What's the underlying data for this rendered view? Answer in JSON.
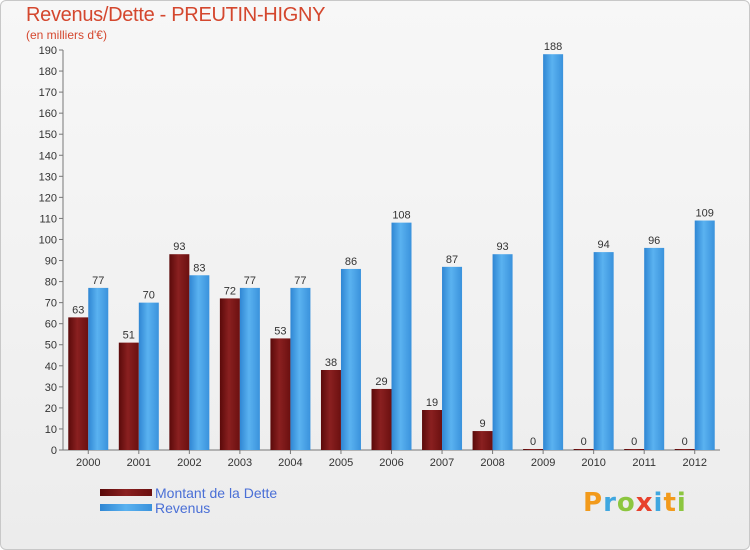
{
  "title": "Revenus/Dette - PREUTIN-HIGNY",
  "subtitle": "(en milliers d'€)",
  "colors": {
    "debt": "#7a1515",
    "revenue": "#3d9be3",
    "title": "#d4472e",
    "legend_text": "#4a6fd6"
  },
  "legend": [
    {
      "label": "Montant de la Dette",
      "series": "debt"
    },
    {
      "label": "Revenus",
      "series": "revenue"
    }
  ],
  "logo": {
    "text": "Proxiti"
  },
  "chart_data": {
    "type": "bar",
    "title": "Revenus/Dette - PREUTIN-HIGNY",
    "subtitle": "(en milliers d'€)",
    "categories": [
      "2000",
      "2001",
      "2002",
      "2003",
      "2004",
      "2005",
      "2006",
      "2007",
      "2008",
      "2009",
      "2010",
      "2011",
      "2012"
    ],
    "series": [
      {
        "name": "Montant de la Dette",
        "values": [
          63,
          51,
          93,
          72,
          53,
          38,
          29,
          19,
          9,
          0,
          0,
          0,
          0
        ]
      },
      {
        "name": "Revenus",
        "values": [
          77,
          70,
          83,
          77,
          77,
          86,
          108,
          87,
          93,
          188,
          94,
          96,
          109
        ]
      }
    ],
    "ylim": [
      0,
      190
    ],
    "ytick_step": 10,
    "grid": false,
    "legend_position": "bottom-left"
  }
}
